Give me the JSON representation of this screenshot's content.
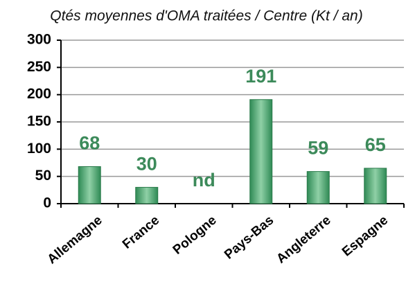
{
  "chart_data": {
    "type": "bar",
    "title": "Qtés moyennes d'OMA traitées / Centre (Kt / an)",
    "categories": [
      "Allemagne",
      "France",
      "Pologne",
      "Pays-Bas",
      "Angleterre",
      "Espagne"
    ],
    "values": [
      68,
      30,
      null,
      191,
      59,
      65
    ],
    "value_labels": [
      "68",
      "30",
      "nd",
      "191",
      "59",
      "65"
    ],
    "color": "#3c9a64",
    "ylim": [
      0,
      300
    ],
    "yticks": [
      0,
      50,
      100,
      150,
      200,
      250,
      300
    ],
    "grid": true
  }
}
